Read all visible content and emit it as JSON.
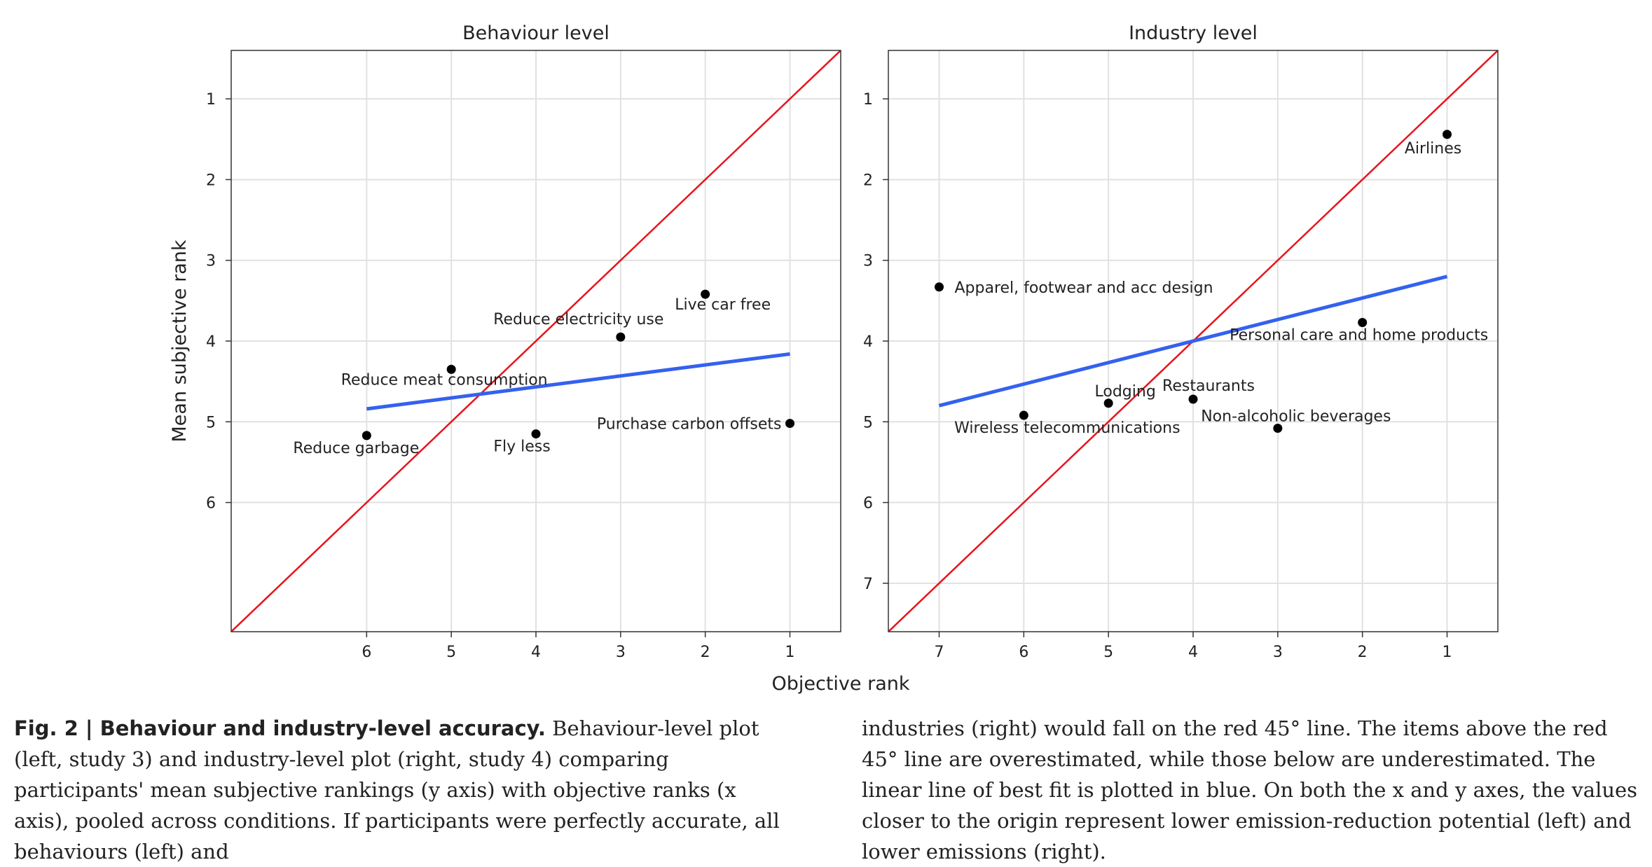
{
  "chart_data": [
    {
      "type": "scatter",
      "title": "Behaviour level",
      "xlabel": "Objective rank",
      "ylabel": "Mean subjective rank",
      "x_axis": {
        "reversed": true,
        "range": [
          7.6,
          0.4
        ],
        "ticks": [
          6,
          5,
          4,
          3,
          2,
          1
        ]
      },
      "y_axis": {
        "reversed": true,
        "range": [
          0.4,
          7.6
        ],
        "ticks": [
          1,
          2,
          3,
          4,
          5,
          6
        ]
      },
      "grid": true,
      "points": [
        {
          "label": "Reduce garbage",
          "x": 6,
          "y": 5.17
        },
        {
          "label": "Reduce meat consumption",
          "x": 5,
          "y": 4.35
        },
        {
          "label": "Fly less",
          "x": 4,
          "y": 5.15
        },
        {
          "label": "Reduce electricity use",
          "x": 3,
          "y": 3.95
        },
        {
          "label": "Live car free",
          "x": 2,
          "y": 3.42
        },
        {
          "label": "Purchase carbon offsets",
          "x": 1,
          "y": 5.02
        }
      ],
      "reference_line": {
        "name": "45° line",
        "color": "#e8131b",
        "x": [
          7.6,
          0.4
        ],
        "y": [
          7.6,
          0.4
        ]
      },
      "fit_line": {
        "name": "linear fit",
        "color": "#3461ee",
        "x": [
          6,
          1
        ],
        "y": [
          4.84,
          4.16
        ]
      }
    },
    {
      "type": "scatter",
      "title": "Industry level",
      "xlabel": "Objective rank",
      "ylabel": "Mean subjective rank",
      "x_axis": {
        "reversed": true,
        "range": [
          7.6,
          0.4
        ],
        "ticks": [
          7,
          6,
          5,
          4,
          3,
          2,
          1
        ]
      },
      "y_axis": {
        "reversed": true,
        "range": [
          0.4,
          7.6
        ],
        "ticks": [
          1,
          2,
          3,
          4,
          5,
          6,
          7
        ]
      },
      "grid": true,
      "points": [
        {
          "label": "Apparel, footwear and acc design",
          "x": 7,
          "y": 3.33
        },
        {
          "label": "Wireless telecommunications",
          "x": 6,
          "y": 4.92
        },
        {
          "label": "Lodging",
          "x": 5,
          "y": 4.77
        },
        {
          "label": "Restaurants",
          "x": 4,
          "y": 4.72
        },
        {
          "label": "Non-alcoholic beverages",
          "x": 3,
          "y": 5.08
        },
        {
          "label": "Personal care and home products",
          "x": 2,
          "y": 3.77
        },
        {
          "label": "Airlines",
          "x": 1,
          "y": 1.44
        }
      ],
      "reference_line": {
        "name": "45° line",
        "color": "#e8131b",
        "x": [
          7.6,
          0.4
        ],
        "y": [
          7.6,
          0.4
        ]
      },
      "fit_line": {
        "name": "linear fit",
        "color": "#3461ee",
        "x": [
          7,
          1
        ],
        "y": [
          4.8,
          3.2
        ]
      }
    }
  ],
  "shared": {
    "xlabel": "Objective rank",
    "ylabel": "Mean subjective rank"
  },
  "caption": {
    "fig_label": "Fig. 2 | Behaviour and industry-level accuracy.",
    "text_left": "Behaviour-level plot (left, study 3) and industry-level plot (right, study 4) comparing participants' mean subjective rankings (y axis) with objective ranks (x axis), pooled across conditions. If participants were perfectly accurate, all behaviours (left) and",
    "text_right": "industries (right) would fall on the red 45° line. The items above the red 45° line are overestimated, while those below are underestimated. The linear line of best fit is plotted in blue. On both the x and y axes, the values closer to the origin represent lower emission-reduction potential (left) and lower emissions (right)."
  }
}
